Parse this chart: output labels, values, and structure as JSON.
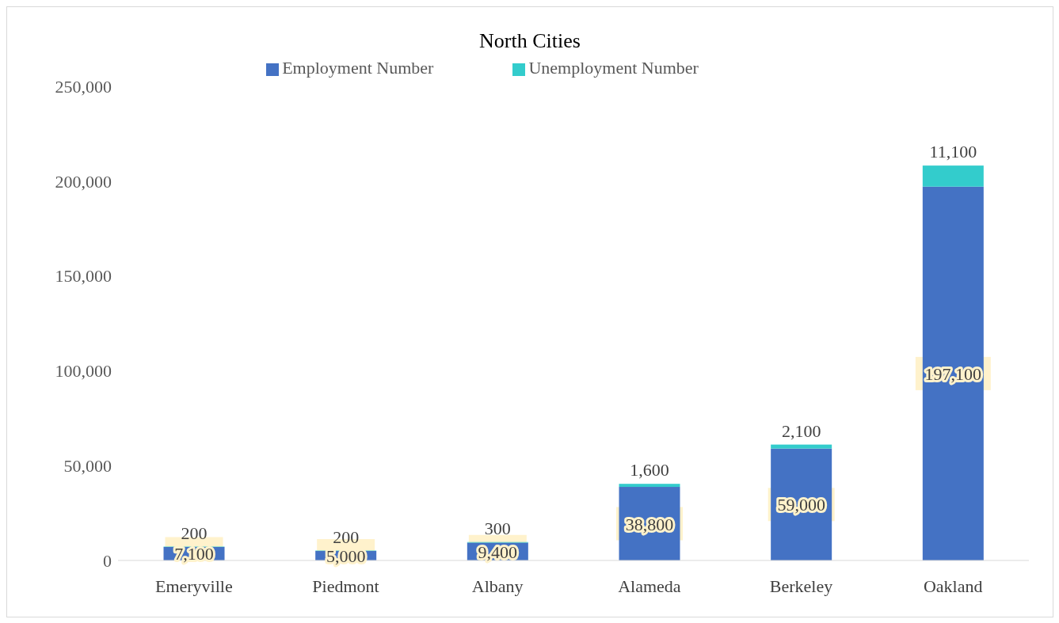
{
  "chart_data": {
    "type": "bar",
    "title": "North Cities",
    "stacked": true,
    "legend": "top",
    "grid": false,
    "categories": [
      "Emeryville",
      "Piedmont",
      "Albany",
      "Alameda",
      "Berkeley",
      "Oakland"
    ],
    "series": [
      {
        "name": "Employment Number",
        "color": "#4472c4",
        "values": [
          7100,
          5000,
          9400,
          38800,
          59000,
          197100
        ],
        "value_labels": [
          "7,100",
          "5,000",
          "9,400",
          "38,800",
          "59,000",
          "197,100"
        ]
      },
      {
        "name": "Unemployment Number",
        "color": "#33cccc",
        "values": [
          200,
          200,
          300,
          1600,
          2100,
          11100
        ],
        "value_labels": [
          "200",
          "200",
          "300",
          "1,600",
          "2,100",
          "11,100"
        ]
      }
    ],
    "ylim": [
      0,
      250000
    ],
    "yticks": [
      {
        "value": 0,
        "label": "0"
      },
      {
        "value": 50000,
        "label": "50,000"
      },
      {
        "value": 100000,
        "label": "100,000"
      },
      {
        "value": 150000,
        "label": "150,000"
      },
      {
        "value": 200000,
        "label": "200,000"
      },
      {
        "value": 250000,
        "label": "250,000"
      }
    ]
  }
}
